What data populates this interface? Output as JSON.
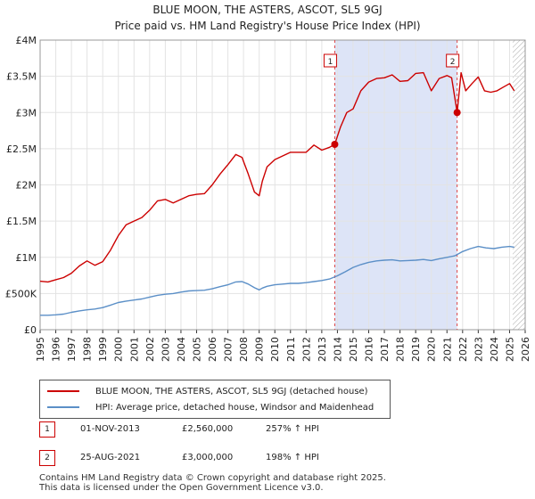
{
  "chart_data": {
    "type": "line",
    "title": "BLUE MOON, THE ASTERS, ASCOT, SL5 9GJ",
    "subtitle": "Price paid vs. HM Land Registry's House Price Index (HPI)",
    "xlim": [
      1995,
      2026
    ],
    "ylim": [
      0,
      4000000
    ],
    "x_ticks": [
      "1995",
      "1996",
      "1997",
      "1998",
      "1999",
      "2000",
      "2001",
      "2002",
      "2003",
      "2004",
      "2005",
      "2006",
      "2007",
      "2008",
      "2009",
      "2010",
      "2011",
      "2012",
      "2013",
      "2014",
      "2015",
      "2016",
      "2017",
      "2018",
      "2019",
      "2020",
      "2021",
      "2022",
      "2023",
      "2024",
      "2025",
      "2026"
    ],
    "y_ticks": [
      {
        "value": 0,
        "label": "£0"
      },
      {
        "value": 500000,
        "label": "£500K"
      },
      {
        "value": 1000000,
        "label": "£1M"
      },
      {
        "value": 1500000,
        "label": "£1.5M"
      },
      {
        "value": 2000000,
        "label": "£2M"
      },
      {
        "value": 2500000,
        "label": "£2.5M"
      },
      {
        "value": 3000000,
        "label": "£3M"
      },
      {
        "value": 3500000,
        "label": "£3.5M"
      },
      {
        "value": 4000000,
        "label": "£4M"
      }
    ],
    "highlight_band": [
      2013.83,
      2021.65
    ],
    "forecast_start": 2025.2,
    "series": [
      {
        "name": "BLUE MOON, THE ASTERS, ASCOT, SL5 9GJ (detached house)",
        "color": "#cc0000",
        "x": [
          1995.0,
          1995.5,
          1996.0,
          1996.5,
          1997.0,
          1997.5,
          1998.0,
          1998.5,
          1999.0,
          1999.5,
          2000.0,
          2000.5,
          2001.0,
          2001.5,
          2002.0,
          2002.5,
          2003.0,
          2003.5,
          2004.0,
          2004.5,
          2005.0,
          2005.5,
          2006.0,
          2006.5,
          2007.0,
          2007.5,
          2007.9,
          2008.3,
          2008.7,
          2009.0,
          2009.2,
          2009.5,
          2010.0,
          2010.5,
          2011.0,
          2011.5,
          2012.0,
          2012.5,
          2013.0,
          2013.5,
          2013.83,
          2014.2,
          2014.6,
          2015.0,
          2015.5,
          2016.0,
          2016.5,
          2017.0,
          2017.5,
          2018.0,
          2018.5,
          2019.0,
          2019.5,
          2020.0,
          2020.5,
          2021.0,
          2021.3,
          2021.65,
          2021.9,
          2022.2,
          2022.6,
          2023.0,
          2023.4,
          2023.8,
          2024.2,
          2024.6,
          2025.0,
          2025.3
        ],
        "values": [
          670000,
          660000,
          690000,
          720000,
          780000,
          880000,
          950000,
          890000,
          940000,
          1100000,
          1300000,
          1450000,
          1500000,
          1550000,
          1650000,
          1780000,
          1800000,
          1750000,
          1800000,
          1850000,
          1870000,
          1880000,
          2000000,
          2150000,
          2280000,
          2420000,
          2380000,
          2150000,
          1900000,
          1850000,
          2050000,
          2250000,
          2350000,
          2400000,
          2450000,
          2450000,
          2450000,
          2550000,
          2480000,
          2520000,
          2560000,
          2800000,
          3000000,
          3050000,
          3300000,
          3420000,
          3470000,
          3480000,
          3520000,
          3430000,
          3440000,
          3540000,
          3550000,
          3300000,
          3470000,
          3510000,
          3480000,
          3000000,
          3550000,
          3300000,
          3400000,
          3490000,
          3300000,
          3280000,
          3300000,
          3350000,
          3400000,
          3300000
        ]
      },
      {
        "name": "HPI: Average price, detached house, Windsor and Maidenhead",
        "color": "#5b8fc7",
        "x": [
          1995.0,
          1995.5,
          1996.0,
          1996.5,
          1997.0,
          1997.5,
          1998.0,
          1998.5,
          1999.0,
          1999.5,
          2000.0,
          2000.5,
          2001.0,
          2001.5,
          2002.0,
          2002.5,
          2003.0,
          2003.5,
          2004.0,
          2004.5,
          2005.0,
          2005.5,
          2006.0,
          2006.5,
          2007.0,
          2007.5,
          2007.9,
          2008.3,
          2008.7,
          2009.0,
          2009.2,
          2009.5,
          2010.0,
          2010.5,
          2011.0,
          2011.5,
          2012.0,
          2012.5,
          2013.0,
          2013.5,
          2014.0,
          2014.5,
          2015.0,
          2015.5,
          2016.0,
          2016.5,
          2017.0,
          2017.5,
          2018.0,
          2018.5,
          2019.0,
          2019.5,
          2020.0,
          2020.5,
          2021.0,
          2021.5,
          2022.0,
          2022.5,
          2023.0,
          2023.5,
          2024.0,
          2024.5,
          2025.0,
          2025.3
        ],
        "values": [
          200000,
          200000,
          205000,
          215000,
          240000,
          260000,
          275000,
          285000,
          305000,
          340000,
          375000,
          395000,
          410000,
          425000,
          450000,
          475000,
          490000,
          500000,
          520000,
          535000,
          540000,
          545000,
          565000,
          595000,
          620000,
          660000,
          665000,
          630000,
          580000,
          550000,
          575000,
          600000,
          620000,
          630000,
          640000,
          640000,
          650000,
          665000,
          680000,
          700000,
          745000,
          800000,
          860000,
          900000,
          930000,
          950000,
          960000,
          965000,
          950000,
          955000,
          960000,
          970000,
          955000,
          980000,
          1000000,
          1020000,
          1080000,
          1120000,
          1150000,
          1130000,
          1120000,
          1140000,
          1150000,
          1140000
        ]
      }
    ],
    "sale_markers": [
      {
        "label": "1",
        "x": 2013.83,
        "value": 2560000
      },
      {
        "label": "2",
        "x": 2021.65,
        "value": 3000000
      }
    ]
  },
  "legend": {
    "property_label": "BLUE MOON, THE ASTERS, ASCOT, SL5 9GJ (detached house)",
    "hpi_label": "HPI: Average price, detached house, Windsor and Maidenhead",
    "property_color": "#cc0000",
    "hpi_color": "#5b8fc7"
  },
  "sales": [
    {
      "num": "1",
      "date": "01-NOV-2013",
      "price": "£2,560,000",
      "hpi": "257% ↑ HPI"
    },
    {
      "num": "2",
      "date": "25-AUG-2021",
      "price": "£3,000,000",
      "hpi": "198% ↑ HPI"
    }
  ],
  "footer": {
    "line1": "Contains HM Land Registry data © Crown copyright and database right 2025.",
    "line2": "This data is licensed under the Open Government Licence v3.0."
  }
}
